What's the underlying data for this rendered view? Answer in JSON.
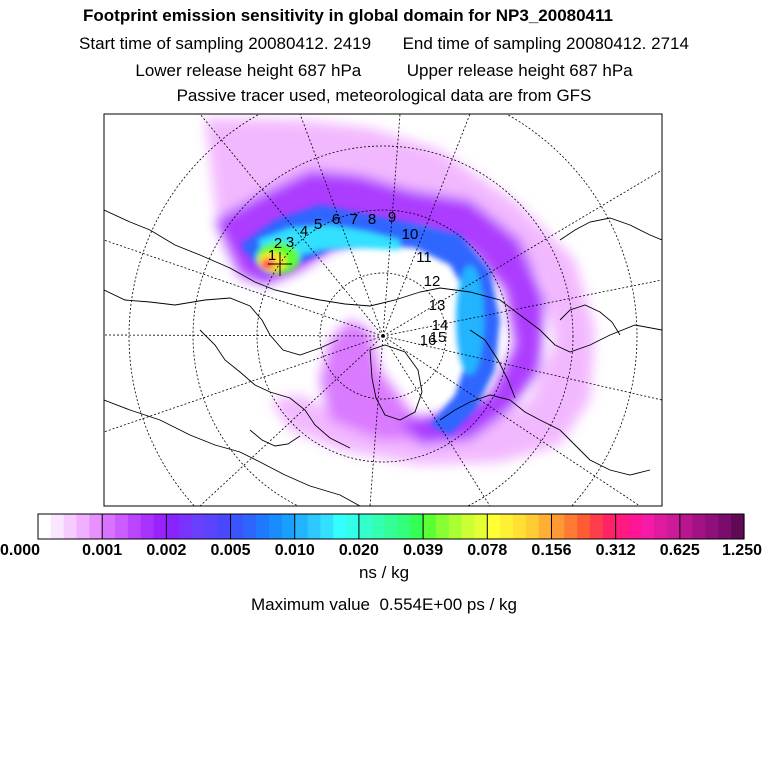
{
  "header": {
    "title": "Footprint emission sensitivity in global domain for NP3_20080411",
    "start_label": "Start time of sampling",
    "start_value": "20080412.  2419",
    "end_label": "End time of sampling",
    "end_value": "20080412.  2714",
    "lower_label": "Lower release height",
    "lower_value": "687 hPa",
    "upper_label": "Upper release height",
    "upper_value": "687 hPa",
    "note": "Passive tracer used, meteorological data are from GFS"
  },
  "chart_data": {
    "type": "heatmap",
    "projection": "polar stereographic (north pole)",
    "title": "Footprint emission sensitivity in global domain for NP3_20080411",
    "colorbar": {
      "tick_labels": [
        "0.000",
        "0.001",
        "0.002",
        "0.005",
        "0.010",
        "0.020",
        "0.039",
        "0.078",
        "0.156",
        "0.312",
        "0.625",
        "1.250"
      ],
      "colors": [
        "#ffffff",
        "#fbe6ff",
        "#f6ccff",
        "#f0b0ff",
        "#e890ff",
        "#d873ff",
        "#cc5cff",
        "#bb44ff",
        "#a833ff",
        "#9a22ff",
        "#8a22ff",
        "#7a33ff",
        "#6a40ff",
        "#5a44ff",
        "#4a48ff",
        "#3a55ff",
        "#2d66ff",
        "#1f7aff",
        "#1a8cff",
        "#19a0ff",
        "#22b4ff",
        "#2cc8ff",
        "#33e0ff",
        "#33ffff",
        "#33ffe8",
        "#33ffcc",
        "#33ffb0",
        "#33ff96",
        "#33ff7a",
        "#33ff55",
        "#5cff33",
        "#88ff33",
        "#aaff33",
        "#ccff33",
        "#e6ff33",
        "#ffff33",
        "#fff033",
        "#ffe033",
        "#ffcc33",
        "#ffb033",
        "#ff9933",
        "#ff7a33",
        "#ff5c33",
        "#ff3d4d",
        "#ff2266",
        "#ff1a80",
        "#ff1493",
        "#f51aa8",
        "#e01a9e",
        "#cc1a99",
        "#b8158f",
        "#a31285",
        "#8f107a",
        "#7a0d6b",
        "#5e0a55"
      ],
      "unit": "ns / kg"
    },
    "max_label": "Maximum value",
    "max_value": "0.554E+00",
    "max_unit": "ps / kg",
    "trajectory_labels": [
      "1",
      "2",
      "3",
      "4",
      "5",
      "6",
      "7",
      "8",
      "9",
      "10",
      "11",
      "12",
      "13",
      "14",
      "15",
      "16"
    ]
  }
}
